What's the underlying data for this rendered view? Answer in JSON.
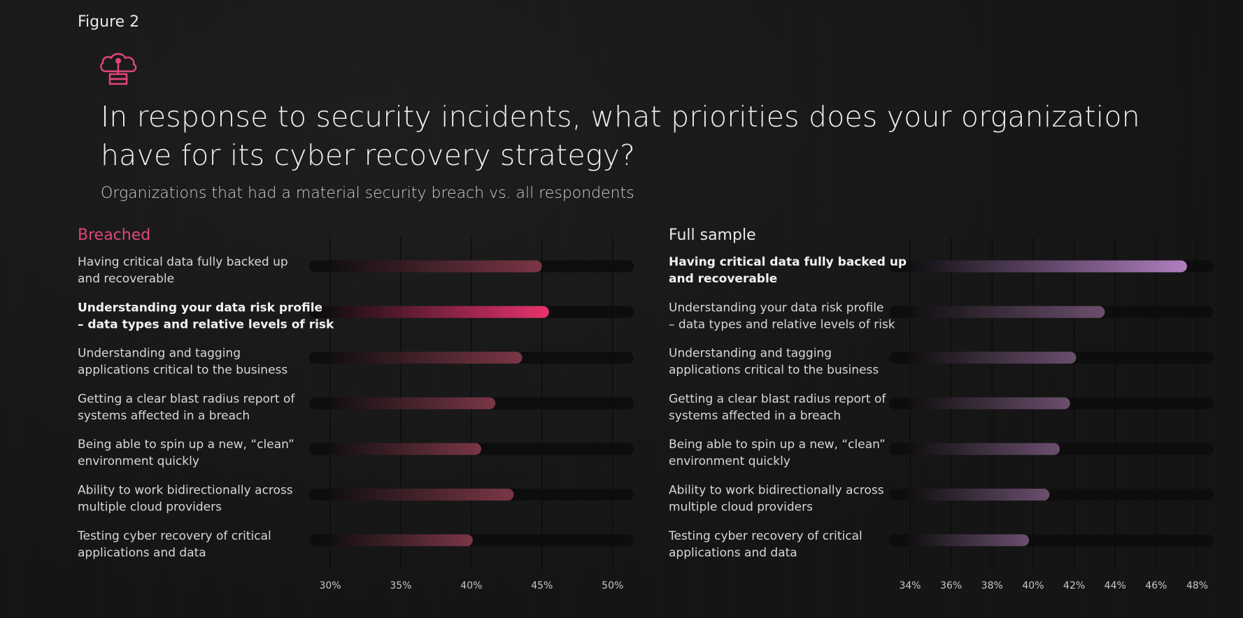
{
  "figure_label": "Figure 2",
  "header": {
    "title": "In response to security incidents, what priorities does your organization have for its cyber recovery strategy?",
    "subtitle": "Organizations that had a material security breach vs. all respondents"
  },
  "icon": "cloud-server-icon",
  "colors": {
    "breached_accent": "#e8336d",
    "full_accent": "#b07ec0",
    "breached_bar": "#7a3646",
    "full_bar": "#6b4f6e"
  },
  "chart_data": [
    {
      "type": "bar",
      "orientation": "horizontal",
      "title": "Breached",
      "categories": [
        "Having critical data fully backed up and recoverable",
        "Understanding your data risk profile – data types and relative levels of risk",
        "Understanding and tagging applications critical to the business",
        "Getting a clear blast radius report of systems affected in a breach",
        "Being able to spin up a new, “clean” environment quickly",
        "Ability to work bidirectionally across multiple cloud providers",
        "Testing cyber recovery of critical applications and data"
      ],
      "category_lines": [
        [
          "Having critical data fully backed up",
          "and recoverable"
        ],
        [
          "Understanding your data risk profile",
          "– data types and relative levels of risk"
        ],
        [
          "Understanding and tagging",
          "applications critical to the business"
        ],
        [
          "Getting a clear blast radius report of",
          "systems affected in a breach"
        ],
        [
          "Being able to spin up a new, “clean”",
          "environment quickly"
        ],
        [
          "Ability to work bidirectionally across",
          "multiple cloud providers"
        ],
        [
          "Testing cyber recovery of critical",
          "applications and data"
        ]
      ],
      "values": [
        45.0,
        45.5,
        43.6,
        41.7,
        40.7,
        43.0,
        40.1
      ],
      "highlight_index": 1,
      "xlim": [
        30,
        51.5
      ],
      "xticks": [
        30,
        35,
        40,
        45,
        50
      ],
      "xtick_labels": [
        "30%",
        "35%",
        "40%",
        "45%",
        "50%"
      ],
      "grid": true
    },
    {
      "type": "bar",
      "orientation": "horizontal",
      "title": "Full sample",
      "categories": [
        "Having critical data fully backed up and recoverable",
        "Understanding your data risk profile – data types and relative levels of risk",
        "Understanding and tagging applications critical to the business",
        "Getting a clear blast radius report of systems affected in a breach",
        "Being able to spin up a new, “clean” environment quickly",
        "Ability to work bidirectionally across multiple cloud providers",
        "Testing cyber recovery of critical applications and data"
      ],
      "category_lines": [
        [
          "Having critical data fully backed up",
          "and recoverable"
        ],
        [
          "Understanding your data risk profile",
          "– data types and relative levels of risk"
        ],
        [
          "Understanding and tagging",
          "applications critical to the business"
        ],
        [
          "Getting a clear blast radius report of",
          "systems affected in a breach"
        ],
        [
          "Being able to spin up a new, “clean”",
          "environment quickly"
        ],
        [
          "Ability to work bidirectionally across",
          "multiple cloud providers"
        ],
        [
          "Testing cyber recovery of critical",
          "applications and data"
        ]
      ],
      "values": [
        47.5,
        43.5,
        42.1,
        41.8,
        41.3,
        40.8,
        39.8
      ],
      "highlight_index": 0,
      "xlim": [
        34,
        48.8
      ],
      "xticks": [
        34,
        36,
        38,
        40,
        42,
        44,
        46,
        48
      ],
      "xtick_labels": [
        "34%",
        "36%",
        "38%",
        "40%",
        "42%",
        "44%",
        "46%",
        "48%"
      ],
      "grid": true
    }
  ]
}
